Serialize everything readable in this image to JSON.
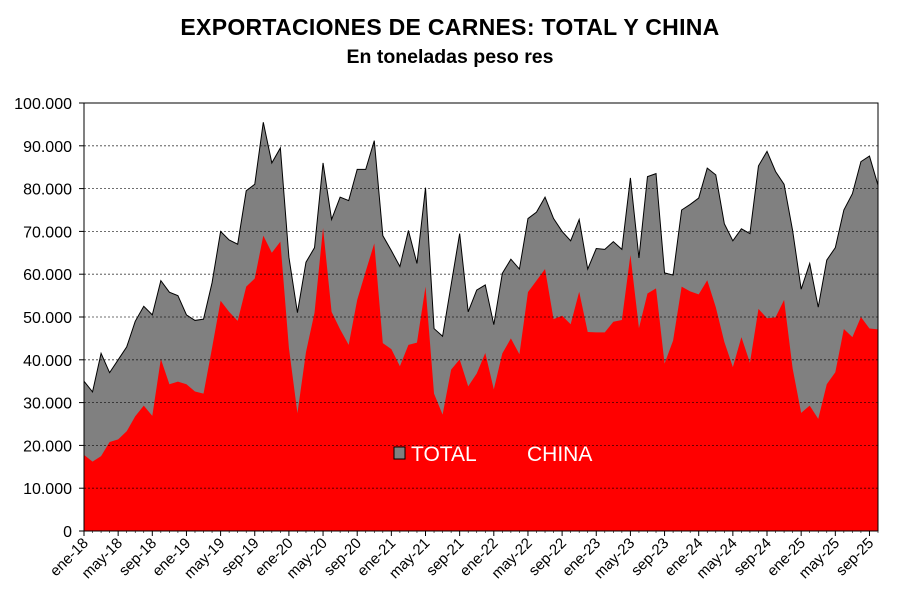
{
  "chart_data": {
    "type": "area",
    "title": "EXPORTACIONES DE CARNES: TOTAL Y CHINA",
    "subtitle": "En toneladas peso res",
    "xlabel": "",
    "ylabel": "",
    "ylim": [
      0,
      100000
    ],
    "y_ticks": [
      "0",
      "10.000",
      "20.000",
      "30.000",
      "40.000",
      "50.000",
      "60.000",
      "70.000",
      "80.000",
      "90.000",
      "100.000"
    ],
    "x_tick_labels": [
      "ene-18",
      "may-18",
      "sep-18",
      "ene-19",
      "may-19",
      "sep-19",
      "ene-20",
      "may-20",
      "sep-20",
      "ene-21",
      "may-21",
      "sep-21",
      "ene-22",
      "may-22",
      "sep-22",
      "ene-23",
      "may-23",
      "sep-23",
      "ene-24",
      "may-24",
      "sep-24",
      "ene-25",
      "may-25",
      "sep-25"
    ],
    "grid": "horizontal dashed",
    "legend": "inside-bottom-center",
    "x": [
      "ene-18",
      "feb-18",
      "mar-18",
      "abr-18",
      "may-18",
      "jun-18",
      "jul-18",
      "ago-18",
      "sep-18",
      "oct-18",
      "nov-18",
      "dic-18",
      "ene-19",
      "feb-19",
      "mar-19",
      "abr-19",
      "may-19",
      "jun-19",
      "jul-19",
      "ago-19",
      "sep-19",
      "oct-19",
      "nov-19",
      "dic-19",
      "ene-20",
      "feb-20",
      "mar-20",
      "abr-20",
      "may-20",
      "jun-20",
      "jul-20",
      "ago-20",
      "sep-20",
      "oct-20",
      "nov-20",
      "dic-20",
      "ene-21",
      "feb-21",
      "mar-21",
      "abr-21",
      "may-21",
      "jun-21",
      "jul-21",
      "ago-21",
      "sep-21",
      "oct-21",
      "nov-21",
      "dic-21",
      "ene-22",
      "feb-22",
      "mar-22",
      "abr-22",
      "may-22",
      "jun-22",
      "jul-22",
      "ago-22",
      "sep-22",
      "oct-22",
      "nov-22",
      "dic-22",
      "ene-23",
      "feb-23",
      "mar-23",
      "abr-23",
      "may-23",
      "jun-23",
      "jul-23",
      "ago-23",
      "sep-23",
      "oct-23",
      "nov-23",
      "dic-23",
      "ene-24",
      "feb-24",
      "mar-24",
      "abr-24",
      "may-24",
      "jun-24",
      "jul-24",
      "ago-24",
      "sep-24",
      "oct-24",
      "nov-24",
      "dic-24",
      "ene-25",
      "feb-25",
      "mar-25",
      "abr-25",
      "may-25",
      "jun-25",
      "jul-25",
      "ago-25",
      "sep-25",
      "oct-25"
    ],
    "series": [
      {
        "name": "TOTAL",
        "color": "#808080",
        "values": [
          35000,
          32500,
          41500,
          37000,
          40000,
          43000,
          49000,
          52500,
          50500,
          58500,
          55800,
          55000,
          50500,
          49200,
          49500,
          58000,
          70000,
          68000,
          67000,
          79500,
          81000,
          95500,
          86000,
          89500,
          64000,
          51000,
          62800,
          66200,
          86000,
          72800,
          78000,
          77200,
          84500,
          84500,
          91200,
          69000,
          65500,
          61800,
          70200,
          62500,
          80200,
          47300,
          45500,
          57500,
          69500,
          51200,
          56300,
          57500,
          48200,
          60200,
          63500,
          61200,
          73000,
          74500,
          78000,
          73000,
          70000,
          67800,
          72800,
          61200,
          66000,
          65800,
          67600,
          65800,
          82500,
          63800,
          82800,
          83500,
          60300,
          59800,
          75000,
          76300,
          77800,
          84800,
          83200,
          71800,
          67800,
          70600,
          69500,
          85300,
          88700,
          84000,
          81000,
          70200,
          56500,
          62500,
          52300,
          63300,
          66200,
          75000,
          78800,
          86300,
          87600,
          80800
        ]
      },
      {
        "name": "CHINA",
        "color": "#ff0000",
        "values": [
          17800,
          16200,
          17500,
          20800,
          21400,
          23300,
          26800,
          29300,
          26900,
          40200,
          34300,
          34900,
          34300,
          32600,
          32100,
          42800,
          53800,
          51200,
          49100,
          57100,
          59000,
          69000,
          65000,
          67600,
          42800,
          27500,
          41800,
          51000,
          70800,
          51200,
          47100,
          43500,
          54000,
          60700,
          67200,
          43900,
          42500,
          38500,
          43500,
          44000,
          57100,
          32100,
          27200,
          37700,
          40100,
          33800,
          36800,
          41600,
          33100,
          41500,
          45000,
          41300,
          55800,
          58500,
          61200,
          49500,
          50300,
          48300,
          55900,
          46500,
          46400,
          46400,
          48900,
          49300,
          64500,
          47400,
          55500,
          56700,
          39100,
          44500,
          57100,
          56000,
          55300,
          58600,
          52300,
          44200,
          38300,
          45300,
          39300,
          51900,
          49700,
          49900,
          54000,
          38000,
          27600,
          29300,
          26200,
          34300,
          37100,
          47200,
          45300,
          50000,
          47300,
          47100
        ]
      }
    ]
  }
}
